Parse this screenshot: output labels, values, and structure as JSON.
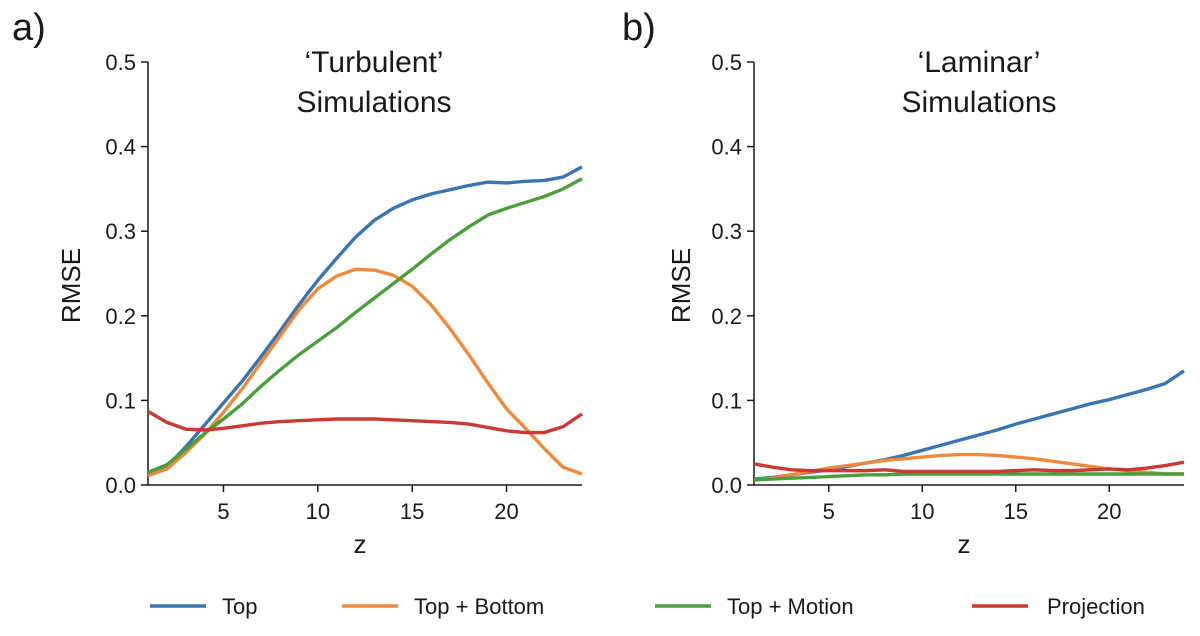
{
  "figure": {
    "legend": [
      {
        "label": "Top",
        "color": "#3a75b0"
      },
      {
        "label": "Top + Bottom",
        "color": "#ee8a3c"
      },
      {
        "label": "Top + Motion",
        "color": "#4c9e3c"
      },
      {
        "label": "Projection",
        "color": "#c83a33"
      }
    ]
  },
  "chart_data": [
    {
      "type": "line",
      "panel_label": "a)",
      "title": [
        "‘Turbulent’",
        "Simulations"
      ],
      "xlabel": "z",
      "ylabel": "RMSE",
      "xlim": [
        1,
        24
      ],
      "ylim": [
        0,
        0.5
      ],
      "xticks": [
        5,
        10,
        15,
        20
      ],
      "xtick_labels": [
        "5",
        "10",
        "15",
        "20"
      ],
      "yticks": [
        0.0,
        0.1,
        0.2,
        0.3,
        0.4,
        0.5
      ],
      "ytick_labels": [
        "0.0",
        "0.1",
        "0.2",
        "0.3",
        "0.4",
        "0.5"
      ],
      "x": [
        1,
        2,
        3,
        4,
        5,
        6,
        7,
        8,
        9,
        10,
        11,
        12,
        13,
        14,
        15,
        16,
        17,
        18,
        19,
        20,
        21,
        22,
        23,
        24
      ],
      "series": [
        {
          "name": "Top",
          "color": "#3a75b0",
          "values": [
            0.013,
            0.022,
            0.045,
            0.071,
            0.097,
            0.123,
            0.152,
            0.182,
            0.213,
            0.242,
            0.268,
            0.293,
            0.313,
            0.327,
            0.337,
            0.344,
            0.349,
            0.354,
            0.358,
            0.357,
            0.359,
            0.36,
            0.364,
            0.376
          ]
        },
        {
          "name": "Top + Bottom",
          "color": "#ee8a3c",
          "values": [
            0.011,
            0.019,
            0.038,
            0.06,
            0.086,
            0.114,
            0.145,
            0.176,
            0.207,
            0.232,
            0.247,
            0.255,
            0.254,
            0.248,
            0.235,
            0.213,
            0.185,
            0.154,
            0.121,
            0.09,
            0.067,
            0.043,
            0.021,
            0.013
          ]
        },
        {
          "name": "Top + Motion",
          "color": "#4c9e3c",
          "values": [
            0.015,
            0.024,
            0.042,
            0.061,
            0.078,
            0.096,
            0.117,
            0.136,
            0.154,
            0.17,
            0.186,
            0.204,
            0.221,
            0.238,
            0.255,
            0.273,
            0.29,
            0.305,
            0.319,
            0.327,
            0.334,
            0.341,
            0.35,
            0.362
          ]
        },
        {
          "name": "Projection",
          "color": "#c83a33",
          "values": [
            0.087,
            0.074,
            0.066,
            0.065,
            0.067,
            0.07,
            0.073,
            0.075,
            0.076,
            0.077,
            0.078,
            0.078,
            0.078,
            0.077,
            0.076,
            0.075,
            0.074,
            0.072,
            0.068,
            0.064,
            0.062,
            0.062,
            0.069,
            0.084
          ]
        }
      ]
    },
    {
      "type": "line",
      "panel_label": "b)",
      "title": [
        "‘Laminar’",
        "Simulations"
      ],
      "xlabel": "z",
      "ylabel": "RMSE",
      "xlim": [
        1,
        24
      ],
      "ylim": [
        0,
        0.5
      ],
      "xticks": [
        5,
        10,
        15,
        20
      ],
      "xtick_labels": [
        "5",
        "10",
        "15",
        "20"
      ],
      "yticks": [
        0.0,
        0.1,
        0.2,
        0.3,
        0.4,
        0.5
      ],
      "ytick_labels": [
        "0.0",
        "0.1",
        "0.2",
        "0.3",
        "0.4",
        "0.5"
      ],
      "x": [
        1,
        2,
        3,
        4,
        5,
        6,
        7,
        8,
        9,
        10,
        11,
        12,
        13,
        14,
        15,
        16,
        17,
        18,
        19,
        20,
        21,
        22,
        23,
        24
      ],
      "series": [
        {
          "name": "Top",
          "color": "#3a75b0",
          "values": [
            0.007,
            0.009,
            0.012,
            0.015,
            0.018,
            0.022,
            0.026,
            0.03,
            0.035,
            0.041,
            0.047,
            0.053,
            0.059,
            0.065,
            0.072,
            0.078,
            0.084,
            0.09,
            0.096,
            0.101,
            0.107,
            0.113,
            0.12,
            0.135
          ]
        },
        {
          "name": "Top + Bottom",
          "color": "#ee8a3c",
          "values": [
            0.006,
            0.008,
            0.012,
            0.016,
            0.02,
            0.023,
            0.026,
            0.029,
            0.031,
            0.033,
            0.035,
            0.036,
            0.036,
            0.035,
            0.033,
            0.031,
            0.028,
            0.025,
            0.022,
            0.019,
            0.017,
            0.015,
            0.013,
            0.013
          ]
        },
        {
          "name": "Top + Motion",
          "color": "#4c9e3c",
          "values": [
            0.006,
            0.007,
            0.008,
            0.009,
            0.01,
            0.011,
            0.012,
            0.012,
            0.013,
            0.013,
            0.013,
            0.013,
            0.013,
            0.013,
            0.013,
            0.013,
            0.013,
            0.013,
            0.013,
            0.013,
            0.013,
            0.013,
            0.013,
            0.013
          ]
        },
        {
          "name": "Projection",
          "color": "#c83a33",
          "values": [
            0.025,
            0.021,
            0.018,
            0.017,
            0.017,
            0.017,
            0.017,
            0.018,
            0.016,
            0.016,
            0.016,
            0.016,
            0.016,
            0.016,
            0.017,
            0.018,
            0.017,
            0.017,
            0.018,
            0.019,
            0.018,
            0.02,
            0.023,
            0.027
          ]
        }
      ]
    }
  ]
}
